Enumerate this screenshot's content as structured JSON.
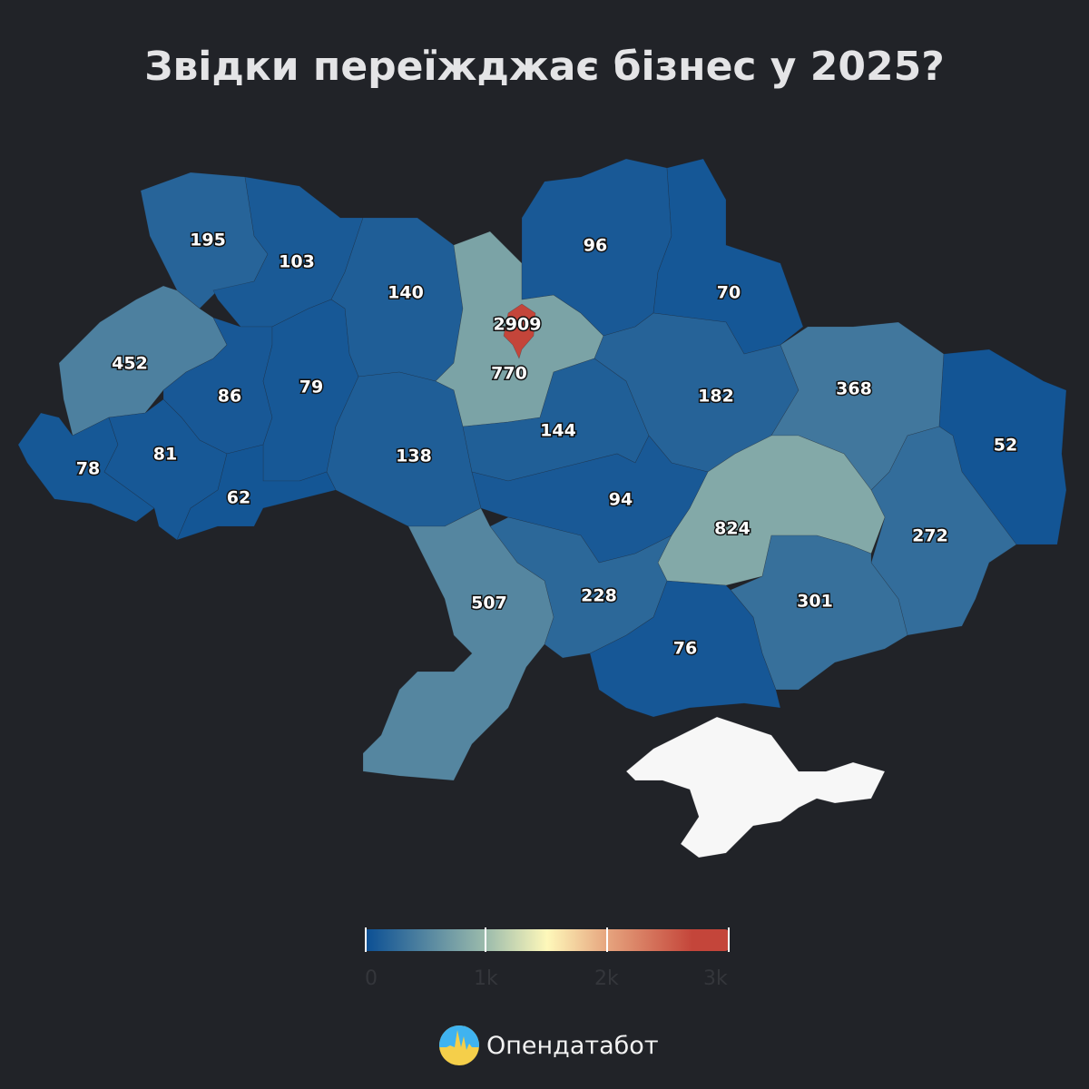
{
  "title": "Звідки переїжджає бізнес у 2025?",
  "color_scale": {
    "stops": [
      {
        "value": 0,
        "color": "#0b4f94"
      },
      {
        "value": 1000,
        "color": "#9dbcac"
      },
      {
        "value": 1500,
        "color": "#fef8ba"
      },
      {
        "value": 2000,
        "color": "#e6a47e"
      },
      {
        "value": 2700,
        "color": "#c4453a"
      },
      {
        "value": 3000,
        "color": "#c4453a"
      }
    ]
  },
  "regions": {
    "volyn": 195,
    "rivne": 103,
    "zhytomyr": 140,
    "kyiv_oblast": 770,
    "kyiv_city": 2909,
    "chernihiv": 96,
    "sumy": 70,
    "lviv": 452,
    "ternopil": 86,
    "khmelnytskyi": 79,
    "vinnytsia": 138,
    "cherkasy": 144,
    "poltava": 182,
    "kharkiv": 368,
    "luhansk": 52,
    "zakarpattia": 78,
    "ivano_frankivsk": 81,
    "chernivtsi": 62,
    "kirovohrad": 94,
    "dnipropetrovsk": 824,
    "donetsk": 272,
    "zaporizhzhia": 301,
    "kherson": 76,
    "mykolaiv": 228,
    "odesa": 507
  },
  "crimea_color": "#f7f7f7",
  "legend": {
    "ticks": [
      "0",
      "1k",
      "2k",
      "3k"
    ]
  },
  "brand": {
    "name": "Опендатабот"
  }
}
